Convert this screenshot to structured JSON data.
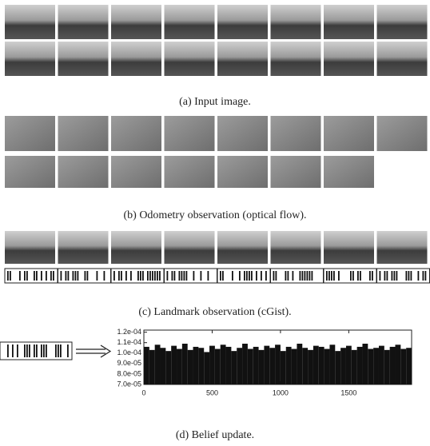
{
  "captions": [
    "(a) Input image.",
    "(b) Odometry observation (optical flow).",
    "(c) Landmark observation (cGist).",
    "(d) Belief update."
  ],
  "chart_data": {
    "type": "bar",
    "color": "#111111",
    "x": [
      0,
      40,
      80,
      120,
      160,
      200,
      240,
      280,
      320,
      360,
      400,
      440,
      480,
      520,
      560,
      600,
      640,
      680,
      720,
      760,
      800,
      840,
      880,
      920,
      960,
      1000,
      1040,
      1080,
      1120,
      1160,
      1200,
      1240,
      1280,
      1320,
      1360,
      1400,
      1440,
      1480,
      1520,
      1560,
      1600,
      1640,
      1680,
      1720,
      1760,
      1800,
      1840,
      1880,
      1920
    ],
    "values": [
      0.000106,
      0.000103,
      0.000108,
      0.000105,
      0.000102,
      0.000107,
      0.000104,
      0.000109,
      0.000103,
      0.000106,
      0.000105,
      0.000101,
      0.000107,
      0.000104,
      0.000108,
      0.000106,
      0.000102,
      0.000105,
      0.000109,
      0.000104,
      0.000106,
      0.000103,
      0.000107,
      0.000105,
      0.000108,
      0.000102,
      0.000106,
      0.000104,
      0.000109,
      0.000105,
      0.000103,
      0.000107,
      0.000106,
      0.000104,
      0.000108,
      0.000102,
      0.000105,
      0.000107,
      0.000103,
      0.000106,
      0.000109,
      0.000104,
      0.000105,
      0.000107,
      0.000103,
      0.000106,
      0.000108,
      0.000104,
      0.000105
    ],
    "xlim": [
      0,
      1960
    ],
    "ylim": [
      7e-05,
      0.000122
    ],
    "xticks": [
      0,
      500,
      1000,
      1500
    ],
    "yticks": [
      {
        "value": 7e-05,
        "label": "7.0e-05"
      },
      {
        "value": 8e-05,
        "label": "8.0e-05"
      },
      {
        "value": 9e-05,
        "label": "9.0e-05"
      },
      {
        "value": 0.0001,
        "label": "1.0e-04"
      },
      {
        "value": 0.00011,
        "label": "1.1e-04"
      },
      {
        "value": 0.00012,
        "label": "1.2e-04"
      }
    ]
  }
}
